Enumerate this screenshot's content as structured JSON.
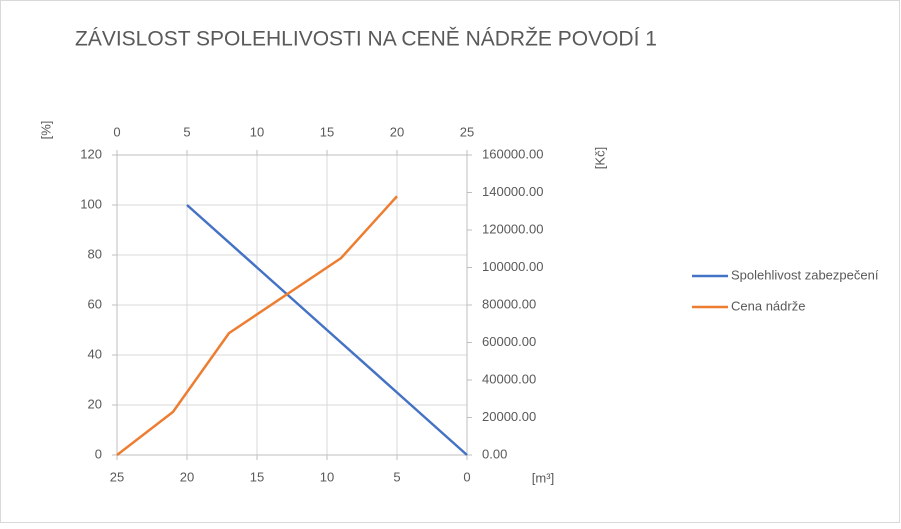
{
  "chart_data": {
    "type": "line",
    "title": "ZÁVISLOST SPOLEHLIVOSTI NA CENĚ NÁDRŽE POVODÍ 1",
    "ylabel": "[%]",
    "y2label": "[Kč]",
    "xlabel": "[m³]",
    "xlim": [
      25,
      0
    ],
    "xticks": [
      25,
      20,
      15,
      10,
      5,
      0
    ],
    "x2lim": [
      0,
      25
    ],
    "x2ticks": [
      0,
      5,
      10,
      15,
      20,
      25
    ],
    "ylim": [
      0,
      120
    ],
    "yticks": [
      0,
      20,
      40,
      60,
      80,
      100,
      120
    ],
    "y2lim": [
      0,
      160000
    ],
    "y2ticks": [
      {
        "value": 0,
        "label": "0.00"
      },
      {
        "value": 20000,
        "label": "20000.00"
      },
      {
        "value": 40000,
        "label": "40000.00"
      },
      {
        "value": 60000,
        "label": "60000.00"
      },
      {
        "value": 80000,
        "label": "80000.00"
      },
      {
        "value": 100000,
        "label": "100000.00"
      },
      {
        "value": 120000,
        "label": "120000.00"
      },
      {
        "value": 140000,
        "label": "140000.00"
      },
      {
        "value": 160000,
        "label": "160000.00"
      }
    ],
    "grid": true,
    "legend": "right",
    "series": [
      {
        "name": "Spolehlivost zabezpečení",
        "color": "#4472c4",
        "x": [
          20,
          15,
          10,
          5,
          0
        ],
        "values": [
          100,
          75,
          50,
          25,
          0
        ]
      },
      {
        "name": "Cena nádrže",
        "color": "#ed7d31",
        "axis": "y2",
        "xaxis": "x2",
        "x": [
          0,
          4,
          8,
          16,
          20
        ],
        "values": [
          0,
          23000,
          65000,
          105000,
          138000
        ]
      }
    ]
  }
}
